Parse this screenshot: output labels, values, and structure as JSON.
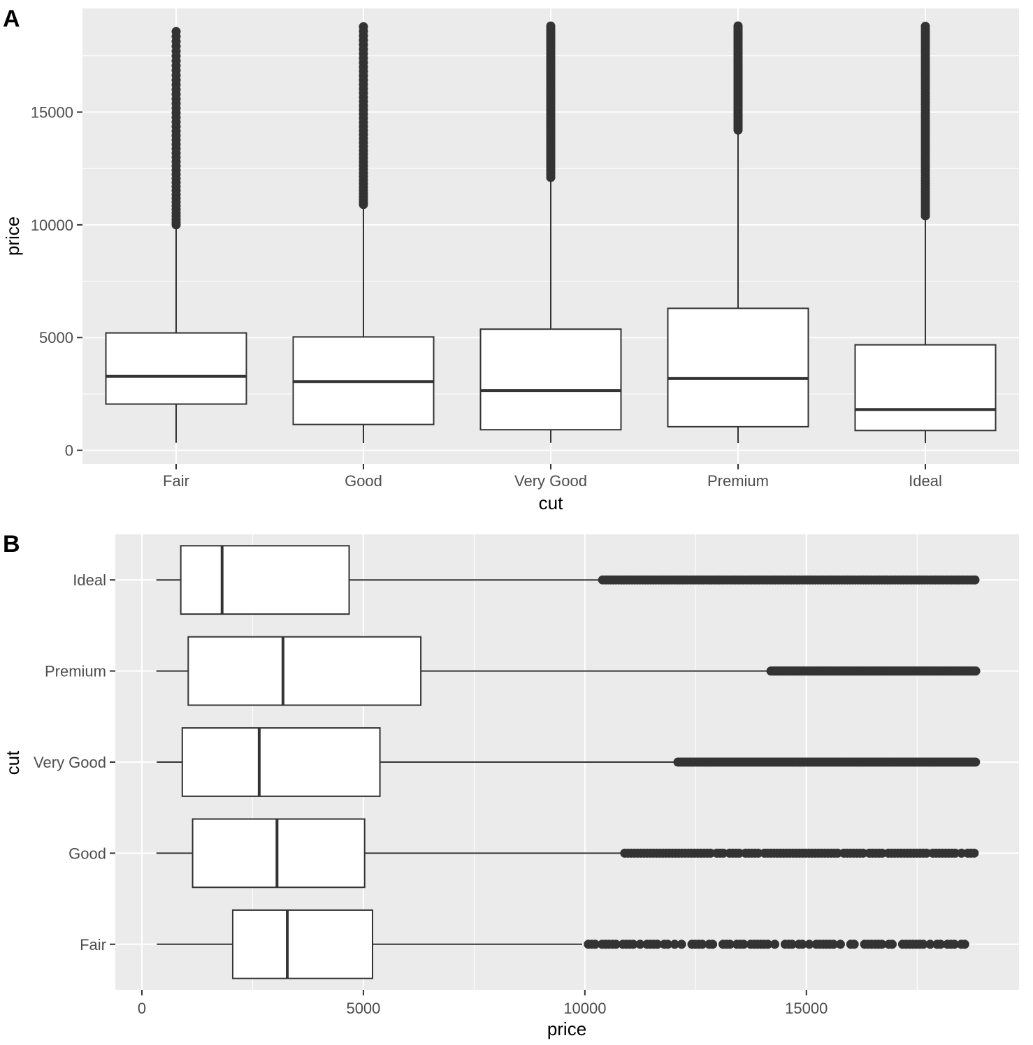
{
  "chart_data": [
    {
      "tag": "A",
      "type": "boxplot",
      "orientation": "vertical",
      "xlabel": "cut",
      "ylabel": "price",
      "categories": [
        "Fair",
        "Good",
        "Very Good",
        "Premium",
        "Ideal"
      ],
      "ylim": [
        -600,
        19600
      ],
      "ticks": [
        0,
        5000,
        10000,
        15000
      ],
      "tick_labels": [
        "0",
        "5000",
        "10000",
        "15000"
      ],
      "boxes": [
        {
          "cut": "Fair",
          "lower_whisker": 337,
          "q1": 2050,
          "median": 3282,
          "q3": 5206,
          "upper_whisker": 9938
        },
        {
          "cut": "Good",
          "lower_whisker": 327,
          "q1": 1145,
          "median": 3050,
          "q3": 5028,
          "upper_whisker": 10850
        },
        {
          "cut": "Very Good",
          "lower_whisker": 336,
          "q1": 912,
          "median": 2648,
          "q3": 5373,
          "upper_whisker": 12050
        },
        {
          "cut": "Premium",
          "lower_whisker": 326,
          "q1": 1046,
          "median": 3185,
          "q3": 6296,
          "upper_whisker": 14150
        },
        {
          "cut": "Ideal",
          "lower_whisker": 326,
          "q1": 878,
          "median": 1810,
          "q3": 4678,
          "upper_whisker": 10350
        }
      ],
      "outlier_ranges": [
        {
          "cut": "Fair",
          "min": 10000,
          "max": 18574
        },
        {
          "cut": "Good",
          "min": 10900,
          "max": 18788
        },
        {
          "cut": "Very Good",
          "min": 12100,
          "max": 18818
        },
        {
          "cut": "Premium",
          "min": 14200,
          "max": 18823
        },
        {
          "cut": "Ideal",
          "min": 10400,
          "max": 18806
        }
      ]
    },
    {
      "tag": "B",
      "type": "boxplot",
      "orientation": "horizontal",
      "xlabel": "price",
      "ylabel": "cut",
      "categories": [
        "Fair",
        "Good",
        "Very Good",
        "Premium",
        "Ideal"
      ],
      "xlim": [
        -600,
        19800
      ],
      "ticks": [
        0,
        5000,
        10000,
        15000
      ],
      "tick_labels": [
        "0",
        "5000",
        "10000",
        "15000"
      ],
      "boxes": [
        {
          "cut": "Fair",
          "lower_whisker": 337,
          "q1": 2050,
          "median": 3282,
          "q3": 5206,
          "upper_whisker": 9938
        },
        {
          "cut": "Good",
          "lower_whisker": 327,
          "q1": 1145,
          "median": 3050,
          "q3": 5028,
          "upper_whisker": 10850
        },
        {
          "cut": "Very Good",
          "lower_whisker": 336,
          "q1": 912,
          "median": 2648,
          "q3": 5373,
          "upper_whisker": 12050
        },
        {
          "cut": "Premium",
          "lower_whisker": 326,
          "q1": 1046,
          "median": 3185,
          "q3": 6296,
          "upper_whisker": 14150
        },
        {
          "cut": "Ideal",
          "lower_whisker": 326,
          "q1": 878,
          "median": 1810,
          "q3": 4678,
          "upper_whisker": 10350
        }
      ],
      "outlier_ranges": [
        {
          "cut": "Fair",
          "min": 10000,
          "max": 18574
        },
        {
          "cut": "Good",
          "min": 10900,
          "max": 18788
        },
        {
          "cut": "Very Good",
          "min": 12100,
          "max": 18818
        },
        {
          "cut": "Premium",
          "min": 14200,
          "max": 18823
        },
        {
          "cut": "Ideal",
          "min": 10400,
          "max": 18806
        }
      ]
    }
  ],
  "colors": {
    "panel_background": "#ebebeb",
    "grid": "#ffffff",
    "box_fill": "#ffffff",
    "box_stroke": "#333333",
    "outlier": "#333333",
    "tick_text": "#4d4d4d",
    "title_text": "#000000"
  }
}
